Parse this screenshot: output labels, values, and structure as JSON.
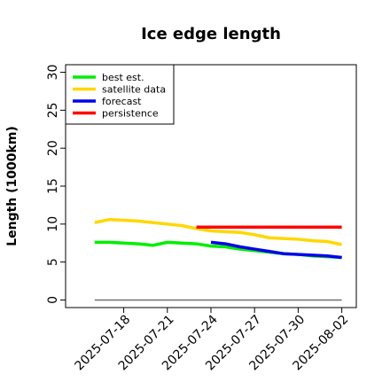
{
  "chart_data": {
    "type": "line",
    "title": "Ice edge length",
    "ylabel": "Length (1000km)",
    "xlabel": "",
    "ylim": [
      -1,
      31
    ],
    "xlim": [
      "2025-07-14",
      "2025-08-03"
    ],
    "y_ticks": [
      "0",
      "5",
      "10",
      "15",
      "20",
      "25",
      "30"
    ],
    "x_ticks": [
      "2025-07-18",
      "2025-07-21",
      "2025-07-24",
      "2025-07-27",
      "2025-07-30",
      "2025-08-02"
    ],
    "highlighted_x_tick": "2025-07-24",
    "grid": false,
    "legend_position": "top-left",
    "series": [
      {
        "name": "best est.",
        "color": "#00ee00",
        "x": [
          "2025-07-16",
          "2025-07-17",
          "2025-07-18",
          "2025-07-19",
          "2025-07-20",
          "2025-07-21",
          "2025-07-22",
          "2025-07-23",
          "2025-07-24",
          "2025-07-25",
          "2025-07-26",
          "2025-07-27",
          "2025-07-28",
          "2025-07-29",
          "2025-07-30",
          "2025-07-31",
          "2025-08-01",
          "2025-08-02"
        ],
        "values": [
          7.6,
          7.6,
          7.5,
          7.4,
          7.2,
          7.6,
          7.5,
          7.4,
          7.1,
          7.0,
          6.7,
          6.5,
          6.3,
          6.1,
          6.0,
          5.8,
          5.7,
          5.6
        ]
      },
      {
        "name": "satellite data",
        "color": "#ffd700",
        "x": [
          "2025-07-16",
          "2025-07-17",
          "2025-07-18",
          "2025-07-19",
          "2025-07-20",
          "2025-07-21",
          "2025-07-22",
          "2025-07-23",
          "2025-07-24",
          "2025-07-25",
          "2025-07-26",
          "2025-07-27",
          "2025-07-28",
          "2025-07-29",
          "2025-07-30",
          "2025-07-31",
          "2025-08-01",
          "2025-08-02"
        ],
        "values": [
          10.2,
          10.6,
          10.5,
          10.4,
          10.2,
          10.0,
          9.8,
          9.4,
          9.1,
          9.0,
          8.9,
          8.6,
          8.2,
          8.1,
          8.0,
          7.8,
          7.7,
          7.3
        ]
      },
      {
        "name": "forecast",
        "color": "#0000ee",
        "x": [
          "2025-07-24",
          "2025-07-25",
          "2025-07-26",
          "2025-07-27",
          "2025-07-28",
          "2025-07-29",
          "2025-07-30",
          "2025-07-31",
          "2025-08-01",
          "2025-08-02"
        ],
        "values": [
          7.6,
          7.4,
          7.0,
          6.7,
          6.4,
          6.1,
          6.0,
          5.9,
          5.8,
          5.6
        ]
      },
      {
        "name": "persistence",
        "color": "#ff0000",
        "x": [
          "2025-07-23",
          "2025-08-02"
        ],
        "values": [
          9.6,
          9.6
        ]
      }
    ],
    "reference_line": {
      "color": "#707070",
      "x": [
        "2025-07-16",
        "2025-08-02"
      ],
      "values": [
        0,
        0
      ]
    }
  }
}
